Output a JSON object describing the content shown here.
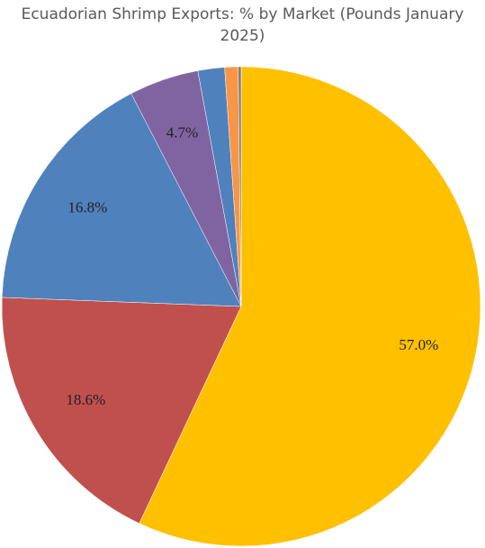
{
  "chart_data": {
    "type": "pie",
    "title": "Ecuadorian Shrimp Exports: % by Market (Pounds January 2025)",
    "values": [
      57.0,
      18.6,
      16.8,
      4.7,
      1.8,
      0.9,
      0.2
    ],
    "value_labels": [
      "57.0%",
      "18.6%",
      "16.8%",
      "4.7%",
      null,
      null,
      null
    ],
    "colors": [
      "#ffc000",
      "#c0504d",
      "#4f81bd",
      "#8064a2",
      "#4f81bd",
      "#f79646",
      "#7f7f7f"
    ]
  }
}
